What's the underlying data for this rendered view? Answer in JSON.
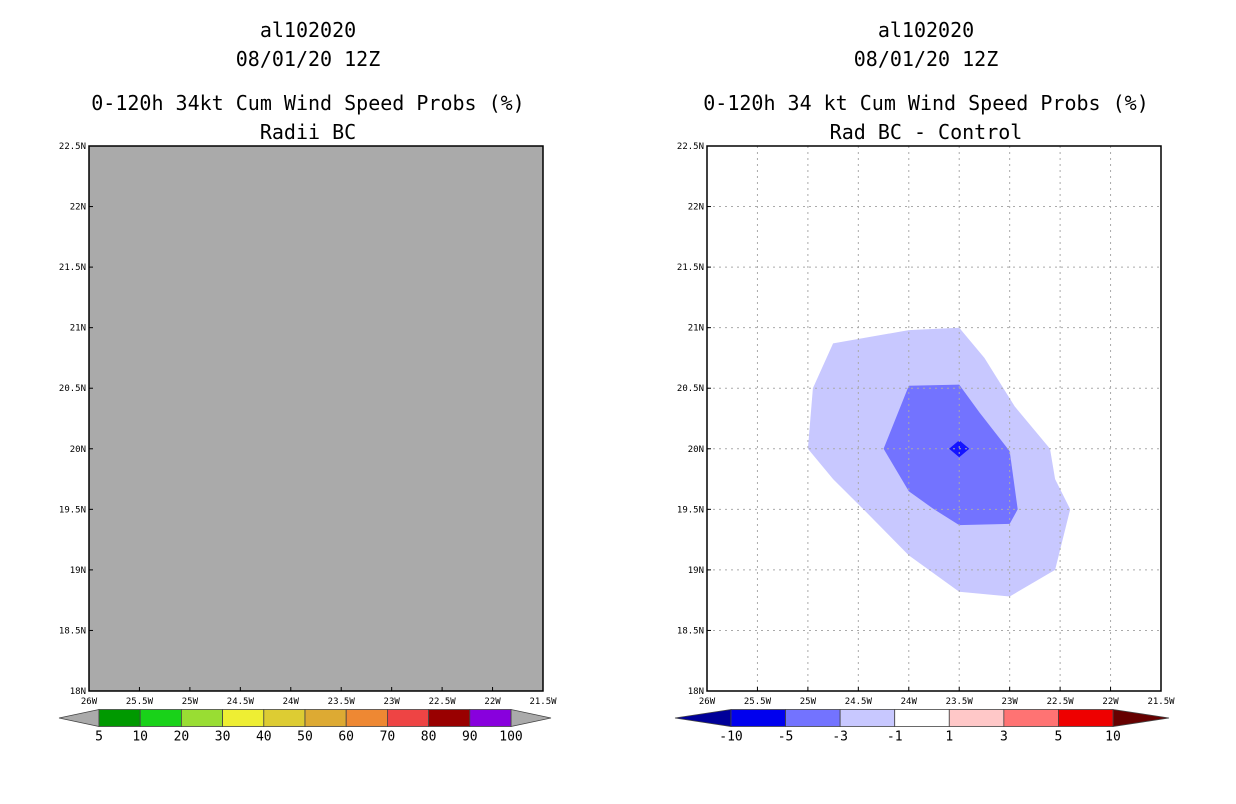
{
  "chart_data": [
    {
      "type": "heatmap",
      "storm_id": "al102020",
      "datetime": "08/01/20 12Z",
      "title": "0-120h 34kt Cum Wind Speed Probs (%)",
      "subtitle": "Radii BC",
      "xlim": [
        -26,
        -21.5
      ],
      "ylim": [
        18,
        22.5
      ],
      "x_ticks": [
        -26,
        -25.5,
        -25,
        -24.5,
        -24,
        -23.5,
        -23,
        -22.5,
        -22,
        -21.5
      ],
      "x_tick_labels": [
        "26W",
        "25.5W",
        "25W",
        "24.5W",
        "24W",
        "23.5W",
        "23W",
        "22.5W",
        "22W",
        "21.5W"
      ],
      "y_ticks": [
        18,
        18.5,
        19,
        19.5,
        20,
        20.5,
        21,
        21.5,
        22,
        22.5
      ],
      "y_tick_labels": [
        "18N",
        "18.5N",
        "19N",
        "19.5N",
        "20N",
        "20.5N",
        "21N",
        "21.5N",
        "22N",
        "22.5N"
      ],
      "grid": false,
      "field_fill": "#aaaaaa",
      "colorbar": {
        "colors": [
          "#009900",
          "#19d219",
          "#99dd33",
          "#eeee33",
          "#ddcc33",
          "#ddaa33",
          "#ee8833",
          "#ee4444",
          "#990000",
          "#8800dd"
        ],
        "arrow_colors": [
          "#aaaaaa",
          "#aaaaaa"
        ],
        "labels": [
          "5",
          "10",
          "20",
          "30",
          "40",
          "50",
          "60",
          "70",
          "80",
          "90",
          "100"
        ]
      }
    },
    {
      "type": "heatmap",
      "storm_id": "al102020",
      "datetime": "08/01/20 12Z",
      "title": "0-120h 34 kt Cum Wind Speed Probs (%)",
      "subtitle": "Rad BC - Control",
      "xlim": [
        -26,
        -21.5
      ],
      "ylim": [
        18,
        22.5
      ],
      "x_ticks": [
        -26,
        -25.5,
        -25,
        -24.5,
        -24,
        -23.5,
        -23,
        -22.5,
        -22,
        -21.5
      ],
      "x_tick_labels": [
        "26W",
        "25.5W",
        "25W",
        "24.5W",
        "24W",
        "23.5W",
        "23W",
        "22.5W",
        "22W",
        "21.5W"
      ],
      "y_ticks": [
        18,
        18.5,
        19,
        19.5,
        20,
        20.5,
        21,
        21.5,
        22,
        22.5
      ],
      "y_tick_labels": [
        "18N",
        "18.5N",
        "19N",
        "19.5N",
        "20N",
        "20.5N",
        "21N",
        "21.5N",
        "22N",
        "22.5N"
      ],
      "grid": true,
      "field_fill": "#ffffff",
      "contours": [
        {
          "level": "-3 to -1",
          "color": "#c8c8ff",
          "points": [
            [
              -25.0,
              20.0
            ],
            [
              -24.95,
              20.5
            ],
            [
              -24.75,
              20.87
            ],
            [
              -24.0,
              20.98
            ],
            [
              -23.5,
              21.0
            ],
            [
              -23.25,
              20.75
            ],
            [
              -22.95,
              20.35
            ],
            [
              -22.6,
              20.0
            ],
            [
              -22.55,
              19.75
            ],
            [
              -22.4,
              19.5
            ],
            [
              -22.55,
              19.0
            ],
            [
              -23.0,
              18.78
            ],
            [
              -23.5,
              18.82
            ],
            [
              -24.0,
              19.12
            ],
            [
              -24.45,
              19.5
            ],
            [
              -24.75,
              19.75
            ]
          ],
          "name": "contour-light-blue"
        },
        {
          "level": "-5 to -3",
          "color": "#7373ff",
          "points": [
            [
              -24.25,
              20.0
            ],
            [
              -24.0,
              20.52
            ],
            [
              -23.5,
              20.53
            ],
            [
              -23.3,
              20.3
            ],
            [
              -23.0,
              19.98
            ],
            [
              -22.92,
              19.5
            ],
            [
              -23.0,
              19.38
            ],
            [
              -23.5,
              19.37
            ],
            [
              -23.75,
              19.5
            ],
            [
              -24.0,
              19.65
            ]
          ],
          "name": "contour-medium-blue"
        },
        {
          "level": "-10 to -5",
          "color": "#1414ff",
          "points": [
            [
              -23.6,
              20.0
            ],
            [
              -23.5,
              20.07
            ],
            [
              -23.4,
              20.0
            ],
            [
              -23.5,
              19.93
            ]
          ],
          "name": "contour-deep-blue"
        }
      ],
      "colorbar": {
        "colors": [
          "#0000ee",
          "#7373ff",
          "#c8c8ff",
          "#ffffff",
          "#ffc8c8",
          "#ff7373",
          "#ee0000"
        ],
        "arrow_colors": [
          "#000099",
          "#660000"
        ],
        "labels": [
          "-10",
          "-5",
          "-3",
          "-1",
          "1",
          "3",
          "5",
          "10"
        ]
      }
    }
  ]
}
